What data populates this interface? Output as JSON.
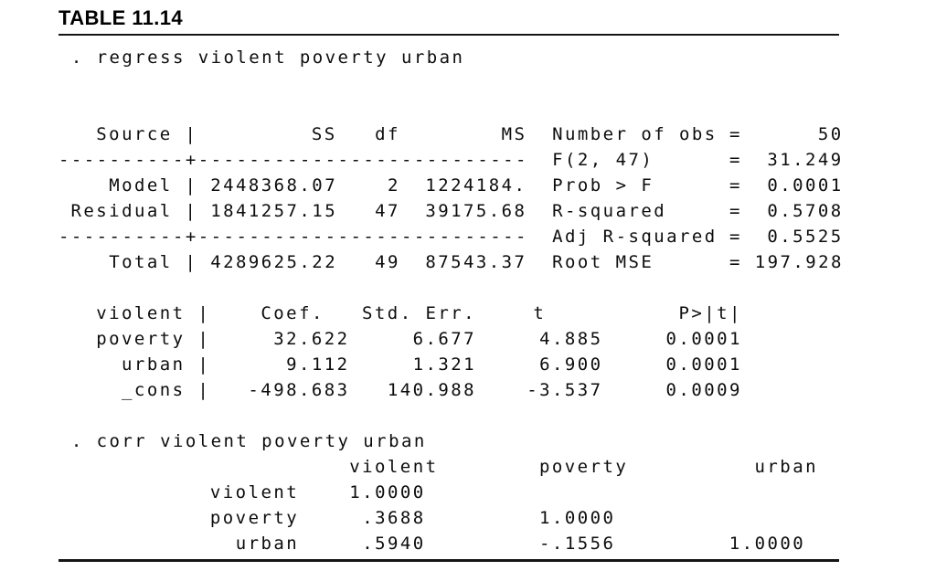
{
  "header": {
    "title": "TABLE 11.14"
  },
  "colors": {
    "text": "#000000",
    "background": "#ffffff"
  },
  "glyphs": {
    "pipe": "|",
    "equals": "="
  },
  "regression": {
    "command": ". regress violent poverty urban",
    "anova": {
      "columns": {
        "source": "Source",
        "ss": "SS",
        "df": "df",
        "ms": "MS"
      },
      "separator": "----------+--------------------------",
      "rows": [
        {
          "source": "Model",
          "ss": "2448368.07",
          "df": "2",
          "ms": "1224184."
        },
        {
          "source": "Residual",
          "ss": "1841257.15",
          "df": "47",
          "ms": "39175.68"
        },
        {
          "source": "Total",
          "ss": "4289625.22",
          "df": "49",
          "ms": "87543.37"
        }
      ]
    },
    "stats": [
      {
        "label": "Number of obs",
        "value": "50"
      },
      {
        "label": "F(2, 47)",
        "value": "31.249"
      },
      {
        "label": "Prob > F",
        "value": "0.0001"
      },
      {
        "label": "R-squared",
        "value": "0.5708"
      },
      {
        "label": "Adj R-squared",
        "value": "0.5525"
      },
      {
        "label": "Root MSE",
        "value": "197.928"
      }
    ],
    "coefficients": {
      "columns": {
        "depvar": "violent",
        "coef": "Coef.",
        "std_err": "Std. Err.",
        "t": "t",
        "p": "P>|t|"
      },
      "rows": [
        {
          "variable": "poverty",
          "coef": "32.622",
          "std_err": "6.677",
          "t": "4.885",
          "p": "0.0001"
        },
        {
          "variable": "urban",
          "coef": "9.112",
          "std_err": "1.321",
          "t": "6.900",
          "p": "0.0001"
        },
        {
          "variable": "_cons",
          "coef": "-498.683",
          "std_err": "140.988",
          "t": "-3.537",
          "p": "0.0009"
        }
      ]
    }
  },
  "correlation": {
    "command": ". corr violent poverty urban",
    "columns": [
      "violent",
      "poverty",
      "urban"
    ],
    "rows": [
      {
        "variable": "violent",
        "values": [
          "1.0000",
          "",
          ""
        ]
      },
      {
        "variable": "poverty",
        "values": [
          ".3688",
          "1.0000",
          ""
        ]
      },
      {
        "variable": "urban",
        "values": [
          ".5940",
          "-.1556",
          "1.0000"
        ]
      }
    ]
  }
}
